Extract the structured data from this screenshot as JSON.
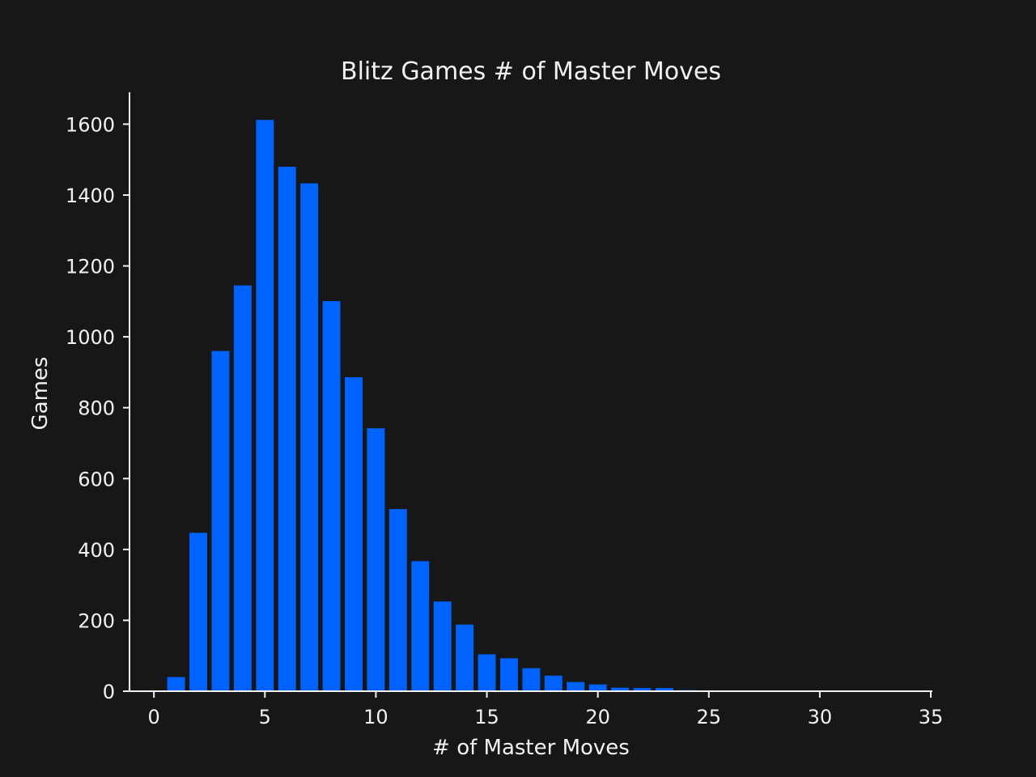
{
  "chart_data": {
    "type": "bar",
    "title": "Blitz Games # of Master Moves",
    "xlabel": "# of Master Moves",
    "ylabel": "Games",
    "x": [
      1,
      2,
      3,
      4,
      5,
      6,
      7,
      8,
      9,
      10,
      11,
      12,
      13,
      14,
      15,
      16,
      17,
      18,
      19,
      20,
      21,
      22,
      23,
      24
    ],
    "values": [
      40,
      447,
      960,
      1145,
      1612,
      1480,
      1433,
      1101,
      886,
      742,
      514,
      367,
      253,
      188,
      104,
      93,
      65,
      44,
      26,
      19,
      10,
      9,
      9,
      3
    ],
    "xlim": [
      -1.1,
      35
    ],
    "ylim": [
      0,
      1690
    ],
    "xticks": [
      "0",
      "5",
      "10",
      "15",
      "20",
      "25",
      "30",
      "35"
    ],
    "yticks": [
      "0",
      "200",
      "400",
      "600",
      "800",
      "1000",
      "1200",
      "1400",
      "1600"
    ],
    "grid": false,
    "legend": "none",
    "colors": {
      "bar": "#0062ff",
      "background": "#171717",
      "text": "#f2f2f2"
    }
  }
}
